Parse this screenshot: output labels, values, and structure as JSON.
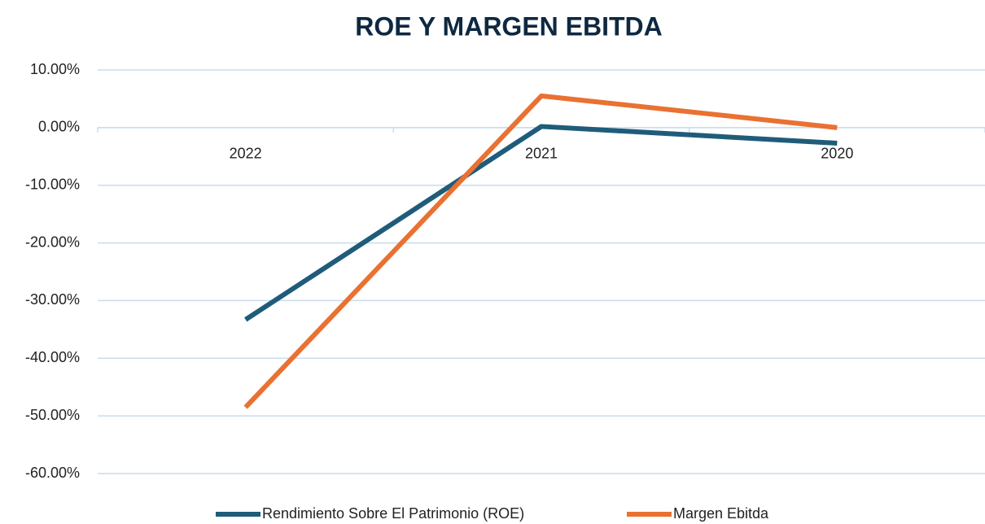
{
  "chart_data": {
    "type": "line",
    "title": "ROE Y MARGEN EBITDA",
    "categories": [
      "2022",
      "2021",
      "2020"
    ],
    "series": [
      {
        "name": "Rendimiento Sobre El Patrimonio (ROE)",
        "color": "#1f5c7a",
        "values": [
          -33.3,
          0.2,
          -2.7
        ]
      },
      {
        "name": "Margen Ebitda",
        "color": "#e97132",
        "values": [
          -48.5,
          5.5,
          0
        ]
      }
    ],
    "ylim": [
      -60,
      10
    ],
    "yticks": [
      {
        "value": -60,
        "label": "-60.00%"
      },
      {
        "value": -50,
        "label": "-50.00%"
      },
      {
        "value": -40,
        "label": "-40.00%"
      },
      {
        "value": -30,
        "label": "-30.00%"
      },
      {
        "value": -20,
        "label": "-20.00%"
      },
      {
        "value": -10,
        "label": "-10.00%"
      },
      {
        "value": 0,
        "label": "0.00%"
      },
      {
        "value": 10,
        "label": "10.00%"
      }
    ],
    "grid": true,
    "legend": "bottom"
  }
}
